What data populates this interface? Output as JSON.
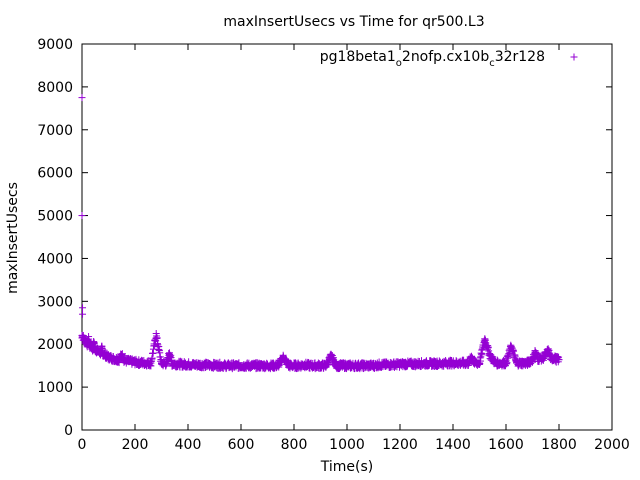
{
  "chart_data": {
    "type": "scatter",
    "title": "maxInsertUsecs vs Time for qr500.L3",
    "xlabel": "Time(s)",
    "ylabel": "maxInsertUsecs",
    "xlim": [
      0,
      2000
    ],
    "ylim": [
      0,
      9000
    ],
    "xticks": [
      0,
      200,
      400,
      600,
      800,
      1000,
      1200,
      1400,
      1600,
      1800,
      2000
    ],
    "yticks": [
      0,
      1000,
      2000,
      3000,
      4000,
      5000,
      6000,
      7000,
      8000,
      9000
    ],
    "legend": {
      "placement": "top-right",
      "name_parts": [
        {
          "text": "pg18beta1",
          "sub": false
        },
        {
          "text": "o",
          "sub": true
        },
        {
          "text": "2nofp.cx10b",
          "sub": false
        },
        {
          "text": "c",
          "sub": true
        },
        {
          "text": "32r128",
          "sub": false
        }
      ]
    },
    "series": [
      {
        "name": "pg18beta1_o2nofp.cx10b_c32r128",
        "color": "#9400d3",
        "marker": "plus",
        "points": [
          [
            0,
            7750
          ],
          [
            0,
            5000
          ],
          [
            2,
            2850
          ],
          [
            2,
            2700
          ],
          [
            0,
            2200
          ],
          [
            5,
            2150
          ],
          [
            10,
            2100
          ],
          [
            15,
            2050
          ],
          [
            20,
            2000
          ],
          [
            25,
            2120
          ],
          [
            30,
            1980
          ],
          [
            35,
            1950
          ],
          [
            40,
            1900
          ],
          [
            45,
            2050
          ],
          [
            50,
            1880
          ],
          [
            55,
            1860
          ],
          [
            60,
            1840
          ],
          [
            65,
            1820
          ],
          [
            70,
            1800
          ],
          [
            75,
            1900
          ],
          [
            80,
            1780
          ],
          [
            85,
            1760
          ],
          [
            90,
            1740
          ],
          [
            95,
            1720
          ],
          [
            100,
            1700
          ],
          [
            110,
            1680
          ],
          [
            120,
            1660
          ],
          [
            130,
            1650
          ],
          [
            140,
            1640
          ],
          [
            150,
            1760
          ],
          [
            160,
            1620
          ],
          [
            170,
            1610
          ],
          [
            180,
            1600
          ],
          [
            190,
            1590
          ],
          [
            200,
            1580
          ],
          [
            220,
            1570
          ],
          [
            240,
            1560
          ],
          [
            260,
            1560
          ],
          [
            280,
            2250
          ],
          [
            300,
            1550
          ],
          [
            320,
            1550
          ],
          [
            330,
            1800
          ],
          [
            340,
            1540
          ],
          [
            360,
            1540
          ],
          [
            380,
            1530
          ],
          [
            400,
            1530
          ],
          [
            420,
            1520
          ],
          [
            440,
            1520
          ],
          [
            460,
            1520
          ],
          [
            480,
            1510
          ],
          [
            500,
            1510
          ],
          [
            520,
            1510
          ],
          [
            540,
            1500
          ],
          [
            560,
            1500
          ],
          [
            580,
            1500
          ],
          [
            600,
            1500
          ],
          [
            620,
            1500
          ],
          [
            640,
            1500
          ],
          [
            660,
            1500
          ],
          [
            680,
            1500
          ],
          [
            700,
            1500
          ],
          [
            720,
            1500
          ],
          [
            740,
            1500
          ],
          [
            760,
            1700
          ],
          [
            780,
            1500
          ],
          [
            800,
            1500
          ],
          [
            820,
            1500
          ],
          [
            840,
            1520
          ],
          [
            860,
            1500
          ],
          [
            880,
            1500
          ],
          [
            900,
            1500
          ],
          [
            920,
            1500
          ],
          [
            940,
            1720
          ],
          [
            960,
            1500
          ],
          [
            980,
            1500
          ],
          [
            1000,
            1500
          ],
          [
            1020,
            1500
          ],
          [
            1040,
            1500
          ],
          [
            1060,
            1500
          ],
          [
            1080,
            1500
          ],
          [
            1100,
            1500
          ],
          [
            1120,
            1520
          ],
          [
            1140,
            1520
          ],
          [
            1160,
            1520
          ],
          [
            1180,
            1530
          ],
          [
            1200,
            1530
          ],
          [
            1220,
            1540
          ],
          [
            1240,
            1540
          ],
          [
            1260,
            1540
          ],
          [
            1280,
            1550
          ],
          [
            1300,
            1550
          ],
          [
            1320,
            1550
          ],
          [
            1340,
            1550
          ],
          [
            1360,
            1550
          ],
          [
            1380,
            1560
          ],
          [
            1400,
            1560
          ],
          [
            1420,
            1560
          ],
          [
            1440,
            1560
          ],
          [
            1460,
            1560
          ],
          [
            1470,
            1720
          ],
          [
            1480,
            1560
          ],
          [
            1500,
            1560
          ],
          [
            1520,
            2120
          ],
          [
            1540,
            1730
          ],
          [
            1560,
            1560
          ],
          [
            1580,
            1560
          ],
          [
            1600,
            1560
          ],
          [
            1620,
            1950
          ],
          [
            1640,
            1560
          ],
          [
            1660,
            1560
          ],
          [
            1680,
            1560
          ],
          [
            1700,
            1640
          ],
          [
            1710,
            1820
          ],
          [
            1720,
            1660
          ],
          [
            1740,
            1680
          ],
          [
            1760,
            1850
          ],
          [
            1770,
            1660
          ],
          [
            1780,
            1680
          ],
          [
            1790,
            1650
          ],
          [
            1800,
            1640
          ]
        ]
      }
    ]
  }
}
